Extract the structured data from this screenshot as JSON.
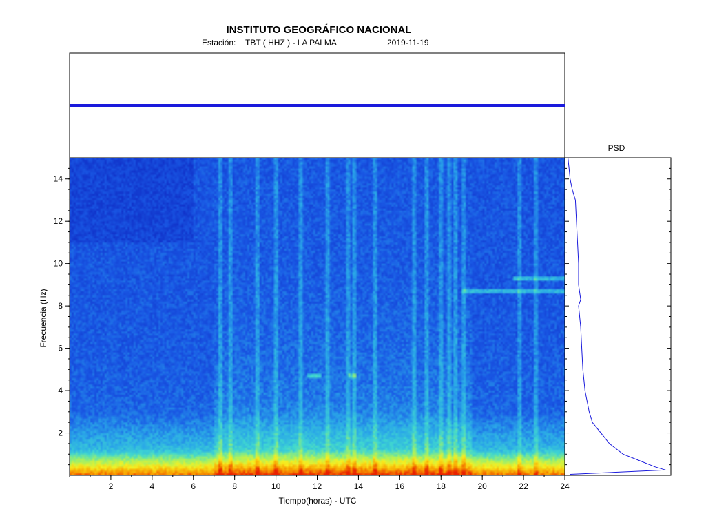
{
  "header": {
    "title": "INSTITUTO GEOGRÁFICO NACIONAL",
    "station_label": "Estación:",
    "station": "TBT ( HHZ ) - LA PALMA",
    "date": "2019-11-19"
  },
  "chart_data": [
    {
      "type": "line",
      "panel": "seismogram",
      "x": [
        0,
        24
      ],
      "xlim": [
        0,
        24
      ],
      "series": [
        {
          "values": [
            0,
            0
          ]
        }
      ],
      "color": "#1a1adc"
    },
    {
      "type": "heatmap",
      "panel": "spectrogram",
      "xlabel": "Tiempo(horas) - UTC",
      "ylabel": "Frecuencia  (Hz)",
      "xlim": [
        0,
        24
      ],
      "ylim": [
        0,
        15
      ],
      "x_ticks": [
        2,
        4,
        6,
        8,
        10,
        12,
        14,
        16,
        18,
        20,
        22,
        24
      ],
      "y_ticks": [
        2,
        4,
        6,
        8,
        10,
        12,
        14
      ],
      "colormap": [
        "#1030c8",
        "#1a5ae6",
        "#2aa8e8",
        "#40d8d0",
        "#9ef06a",
        "#f8f020",
        "#f8a000",
        "#e82000"
      ],
      "energy_bursts_hours": [
        7.3,
        7.8,
        9.1,
        10.0,
        11.2,
        12.5,
        13.5,
        13.8,
        14.8,
        16.7,
        17.3,
        18.0,
        18.4,
        18.7,
        19.1,
        21.8,
        22.6
      ],
      "tones": [
        {
          "t0": 11.5,
          "t1": 12.2,
          "f": 4.7
        },
        {
          "t0": 13.5,
          "t1": 13.9,
          "f": 4.7
        },
        {
          "t0": 19.0,
          "t1": 24.0,
          "f": 8.7
        },
        {
          "t0": 21.5,
          "t1": 24.0,
          "f": 9.3
        }
      ]
    },
    {
      "type": "line",
      "panel": "psd",
      "title": "PSD",
      "ylim": [
        0,
        15
      ],
      "x": [
        15,
        14.5,
        14,
        13.5,
        13,
        12,
        11,
        10,
        9,
        8.3,
        8,
        7,
        6,
        5,
        4,
        3,
        2.5,
        2,
        1.5,
        1,
        0.7,
        0.4,
        0.25,
        0.15,
        0.05
      ],
      "series": [
        {
          "values": [
            0.03,
            0.04,
            0.05,
            0.07,
            0.1,
            0.11,
            0.12,
            0.13,
            0.13,
            0.15,
            0.13,
            0.15,
            0.16,
            0.17,
            0.19,
            0.23,
            0.26,
            0.34,
            0.42,
            0.55,
            0.7,
            0.85,
            0.95,
            0.5,
            0.05
          ]
        }
      ],
      "color": "#1a1adc"
    }
  ]
}
